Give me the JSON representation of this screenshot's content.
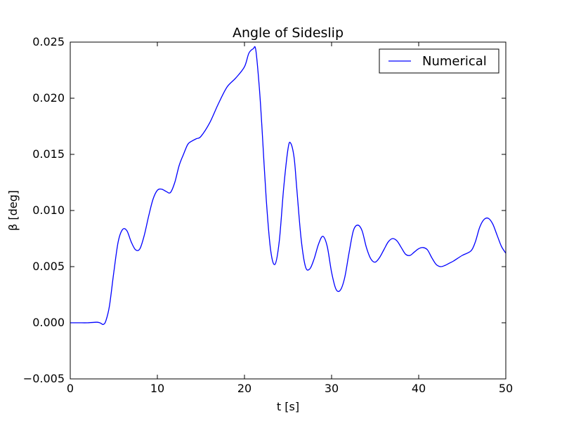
{
  "chart_data": {
    "type": "line",
    "title": "Angle of Sideslip",
    "xlabel": "t [s]",
    "ylabel": "β [deg]",
    "xlim": [
      0,
      50
    ],
    "ylim": [
      -0.005,
      0.025
    ],
    "xticks": [
      0,
      10,
      20,
      30,
      40,
      50
    ],
    "xtick_labels": [
      "0",
      "10",
      "20",
      "30",
      "40",
      "50"
    ],
    "yticks": [
      -0.005,
      0,
      0.005,
      0.01,
      0.015,
      0.02,
      0.025
    ],
    "ytick_labels": [
      "−0.005",
      "0.000",
      "0.005",
      "0.010",
      "0.015",
      "0.020",
      "0.025"
    ],
    "grid": false,
    "legend": {
      "position": "top-right",
      "entries": [
        "Numerical"
      ]
    },
    "series": [
      {
        "name": "Numerical",
        "color": "#0000ff",
        "x": [
          0,
          1,
          2,
          3,
          3.4,
          3.8,
          4.1,
          4.5,
          5,
          5.5,
          6,
          6.5,
          7,
          7.5,
          8,
          8.5,
          9,
          9.5,
          10,
          10.5,
          11,
          11.5,
          12,
          12.5,
          13,
          13.5,
          14,
          14.5,
          15,
          16,
          17,
          18,
          19,
          20,
          20.5,
          21,
          21.3,
          21.7,
          22,
          22.5,
          23,
          23.5,
          24,
          24.5,
          25,
          25.3,
          25.7,
          26,
          26.5,
          27,
          27.5,
          28,
          28.5,
          29,
          29.5,
          30,
          30.5,
          31,
          31.5,
          32,
          32.5,
          33,
          33.5,
          34,
          34.5,
          35,
          35.5,
          36,
          36.5,
          37,
          37.5,
          38,
          38.5,
          39,
          39.5,
          40,
          40.5,
          41,
          41.5,
          42,
          42.5,
          43,
          43.5,
          44,
          45,
          46,
          46.5,
          47,
          47.5,
          48,
          48.5,
          49,
          49.5,
          50
        ],
        "y": [
          0.0,
          0.0,
          0.0,
          5e-05,
          0.0,
          -0.00015,
          0.0002,
          0.0015,
          0.0045,
          0.0072,
          0.0083,
          0.0082,
          0.0072,
          0.0065,
          0.0066,
          0.0078,
          0.0095,
          0.011,
          0.0118,
          0.0119,
          0.0117,
          0.0116,
          0.0125,
          0.014,
          0.015,
          0.0159,
          0.0162,
          0.0164,
          0.0166,
          0.0178,
          0.0195,
          0.021,
          0.0218,
          0.0228,
          0.024,
          0.0244,
          0.0243,
          0.021,
          0.0175,
          0.011,
          0.0065,
          0.0052,
          0.0073,
          0.012,
          0.0155,
          0.016,
          0.0147,
          0.012,
          0.0075,
          0.005,
          0.0048,
          0.0057,
          0.007,
          0.0077,
          0.0068,
          0.0045,
          0.003,
          0.0029,
          0.004,
          0.0062,
          0.0082,
          0.0087,
          0.0082,
          0.0067,
          0.0057,
          0.0054,
          0.0058,
          0.0065,
          0.0072,
          0.0075,
          0.0073,
          0.0067,
          0.0061,
          0.006,
          0.0063,
          0.0066,
          0.0067,
          0.0065,
          0.0058,
          0.0052,
          0.005,
          0.0051,
          0.0053,
          0.0055,
          0.006,
          0.0064,
          0.0072,
          0.0085,
          0.0092,
          0.0093,
          0.0088,
          0.0078,
          0.0068,
          0.0062
        ]
      }
    ]
  }
}
